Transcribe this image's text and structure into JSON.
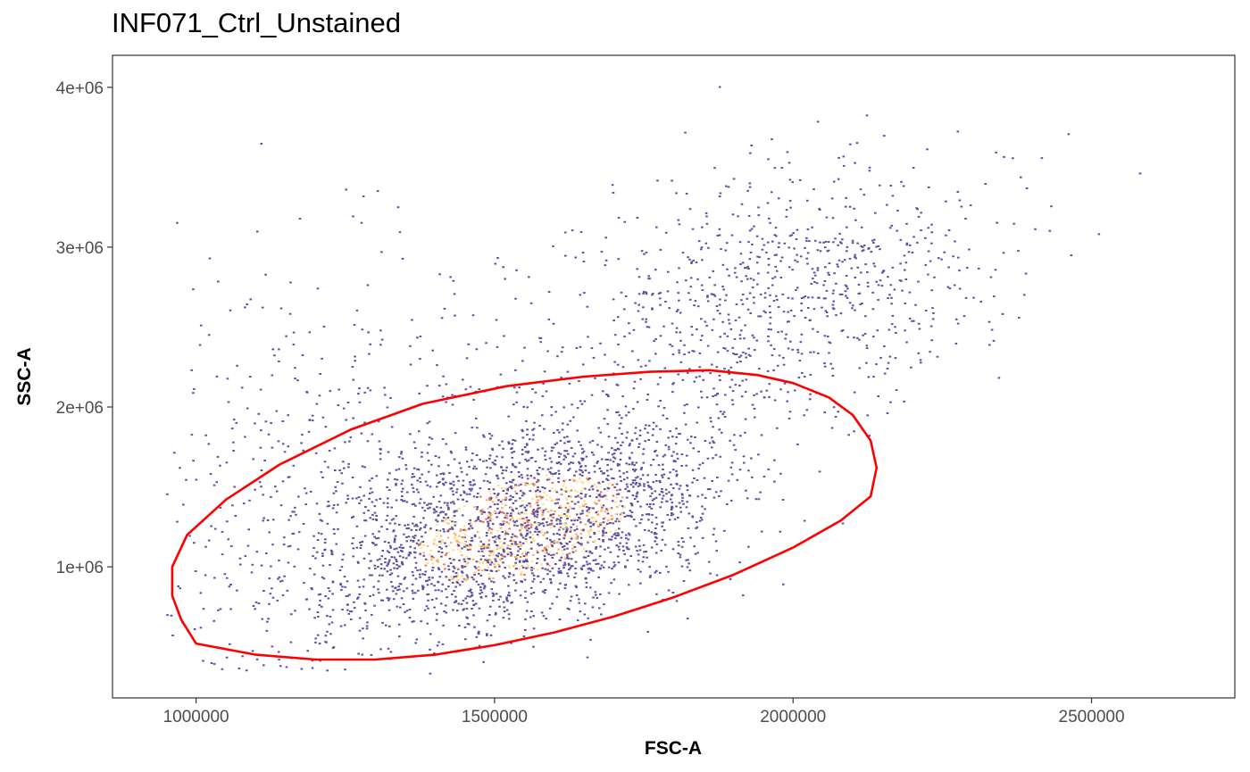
{
  "chart_data": {
    "type": "scatter",
    "title": "INF071_Ctrl_Unstained",
    "xlabel": "FSC-A",
    "ylabel": "SSC-A",
    "xlim": [
      860000,
      2740000
    ],
    "ylim": [
      180000,
      4200000
    ],
    "x_ticks": [
      {
        "value": 1000000,
        "label": "1000000"
      },
      {
        "value": 1500000,
        "label": "1500000"
      },
      {
        "value": 2000000,
        "label": "2000000"
      },
      {
        "value": 2500000,
        "label": "2500000"
      }
    ],
    "y_ticks": [
      {
        "value": 1000000,
        "label": "1e+06"
      },
      {
        "value": 2000000,
        "label": "2e+06"
      },
      {
        "value": 3000000,
        "label": "3e+06"
      },
      {
        "value": 4000000,
        "label": "4e+06"
      }
    ],
    "grid": false,
    "density_colors": [
      "#5e4fa2",
      "#fee08b",
      "#fdae61",
      "#f46d43"
    ],
    "gate_color": "#ff0000",
    "clusters": [
      {
        "center": [
          1550000,
          1250000
        ],
        "spread": [
          170000,
          330000
        ],
        "corr": 0.45,
        "count": 2600
      },
      {
        "center": [
          1970000,
          2700000
        ],
        "spread": [
          190000,
          420000
        ],
        "corr": 0.3,
        "count": 900
      },
      {
        "center": [
          1200000,
          1500000
        ],
        "spread": [
          170000,
          700000
        ],
        "corr": 0.2,
        "count": 500
      }
    ],
    "gate": [
      [
        1000000,
        520000
      ],
      [
        1100000,
        450000
      ],
      [
        1200000,
        420000
      ],
      [
        1300000,
        420000
      ],
      [
        1400000,
        450000
      ],
      [
        1500000,
        510000
      ],
      [
        1600000,
        590000
      ],
      [
        1700000,
        690000
      ],
      [
        1800000,
        810000
      ],
      [
        1900000,
        950000
      ],
      [
        2000000,
        1120000
      ],
      [
        2080000,
        1290000
      ],
      [
        2130000,
        1440000
      ],
      [
        2140000,
        1620000
      ],
      [
        2130000,
        1790000
      ],
      [
        2100000,
        1950000
      ],
      [
        2060000,
        2060000
      ],
      [
        2000000,
        2150000
      ],
      [
        1940000,
        2200000
      ],
      [
        1860000,
        2230000
      ],
      [
        1760000,
        2220000
      ],
      [
        1650000,
        2190000
      ],
      [
        1520000,
        2130000
      ],
      [
        1380000,
        2020000
      ],
      [
        1260000,
        1860000
      ],
      [
        1140000,
        1640000
      ],
      [
        1050000,
        1420000
      ],
      [
        985000,
        1200000
      ],
      [
        960000,
        1000000
      ],
      [
        960000,
        820000
      ],
      [
        975000,
        670000
      ],
      [
        1000000,
        520000
      ]
    ]
  }
}
